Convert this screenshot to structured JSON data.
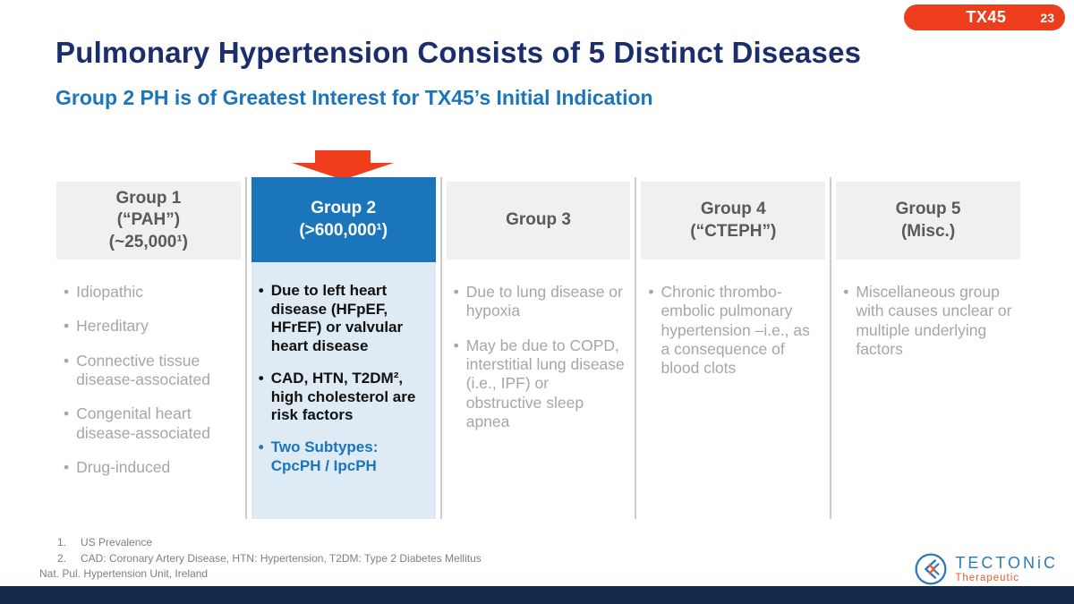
{
  "badge": {
    "product": "TX45",
    "page": "23"
  },
  "title": "Pulmonary Hypertension Consists of 5 Distinct Diseases",
  "subtitle": "Group 2 PH is of Greatest Interest for TX45’s Initial Indication",
  "colors": {
    "accent_orange": "#ee3d1c",
    "title_navy": "#1b2e6b",
    "accent_blue": "#1b75bc",
    "highlight_header_bg": "#1b75bb",
    "highlight_panel_bg": "#deeaf4",
    "header_gray_bg": "#f0f0f0",
    "body_text_gray": "#a6a6a6",
    "footer_bar_navy": "#15294b"
  },
  "columns": [
    {
      "name": "group-1",
      "highlighted": false,
      "header_lines": [
        "Group 1",
        "(“PAH”)",
        "(~25,000¹)"
      ],
      "bullets": [
        {
          "text": "Idiopathic"
        },
        {
          "text": "Hereditary"
        },
        {
          "text": "Connective tissue disease-associated"
        },
        {
          "text": "Congenital heart disease-associated"
        },
        {
          "text": "Drug-induced"
        }
      ]
    },
    {
      "name": "group-2",
      "highlighted": true,
      "header_lines": [
        "Group 2",
        "(>600,000¹)"
      ],
      "bullets": [
        {
          "text": "Due to left heart disease (HFpEF, HFrEF) or valvular heart disease"
        },
        {
          "text": "CAD, HTN, T2DM², high cholesterol are risk factors"
        },
        {
          "text": "Two Subtypes: CpcPH / IpcPH",
          "accent": true
        }
      ]
    },
    {
      "name": "group-3",
      "highlighted": false,
      "header_lines": [
        "Group 3"
      ],
      "bullets": [
        {
          "text": "Due to lung disease or hypoxia"
        },
        {
          "text": "May be due to COPD, interstitial lung disease (i.e., IPF) or obstructive sleep apnea"
        }
      ]
    },
    {
      "name": "group-4",
      "highlighted": false,
      "header_lines": [
        "Group 4",
        "(“CTEPH”)"
      ],
      "bullets": [
        {
          "text": "Chronic thrombo-embolic pulmonary hypertension –i.e., as a consequence of blood clots"
        }
      ]
    },
    {
      "name": "group-5",
      "highlighted": false,
      "header_lines": [
        "Group 5",
        "(Misc.)"
      ],
      "bullets": [
        {
          "text": "Miscellaneous group with causes unclear or multiple underlying factors"
        }
      ]
    }
  ],
  "footnotes": {
    "items": [
      {
        "num": "1.",
        "text": "US Prevalence"
      },
      {
        "num": "2.",
        "text": "CAD: Coronary Artery Disease, HTN: Hypertension, T2DM: Type 2 Diabetes Mellitus"
      }
    ],
    "source": "Nat. Pul. Hypertension Unit, Ireland"
  },
  "logo": {
    "name": "TECTONiC",
    "sub": "Therapeutic"
  }
}
